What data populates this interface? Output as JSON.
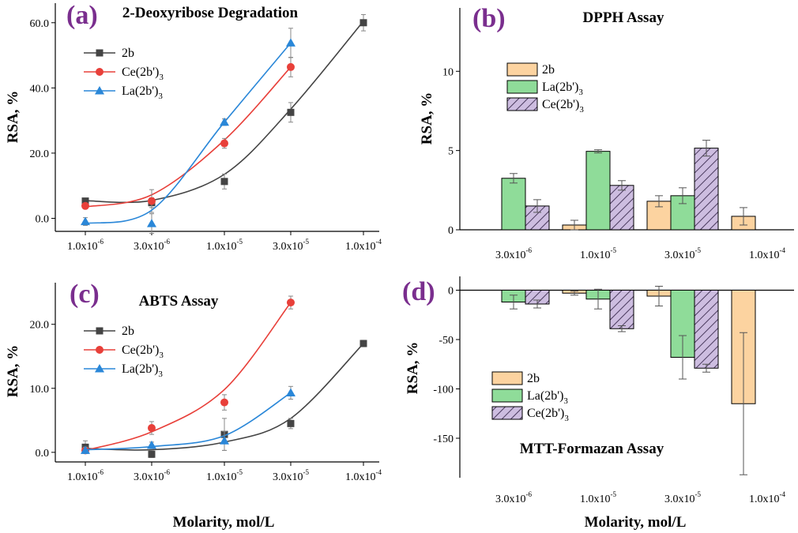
{
  "colors": {
    "s2b": "#444444",
    "ce": "#e8403a",
    "la": "#2a87d8",
    "bar_2b": "#fcd3a0",
    "bar_la": "#8fdc99",
    "bar_ce": "#cdbde0",
    "panel_label": "#7a2e8e"
  },
  "shared": {
    "xlabel": "Molarity, mol/L"
  },
  "chart_data": [
    {
      "id": "a",
      "panel_label": "(a)",
      "type": "line",
      "title": "2-Deoxyribose Degradation",
      "ylabel": "RSA, %",
      "xlabel": "",
      "x_scale": "log",
      "x_ticks": [
        "1.0x10",
        "3.0x10",
        "1.0x10",
        "3.0x10",
        "1.0x10"
      ],
      "x_tick_exps": [
        "-6",
        "-6",
        "-5",
        "-5",
        "-4"
      ],
      "x_tick_values": [
        1e-06,
        3e-06,
        1e-05,
        3e-05,
        0.0001
      ],
      "ylim": [
        -4,
        66
      ],
      "yticks": [
        0,
        20,
        40,
        60
      ],
      "ytick_labels": [
        "0.0",
        "20.0",
        "40.0",
        "60.0"
      ],
      "legend": [
        "2b",
        "Ce(2b')",
        "La(2b')"
      ],
      "legend_sub": "3",
      "series": [
        {
          "name": "2b",
          "color_key": "s2b",
          "marker": "square",
          "x": [
            1e-06,
            3e-06,
            1e-05,
            3e-05,
            0.0001
          ],
          "values": [
            5.3,
            4.8,
            11.3,
            32.5,
            60.0
          ],
          "errors": [
            0.8,
            1.5,
            2.3,
            3.0,
            2.5
          ],
          "fit": [
            5.4,
            5.5,
            13.5,
            33.5,
            60.5
          ]
        },
        {
          "name": "Ce(2b')3",
          "color_key": "ce",
          "marker": "circle",
          "x": [
            1e-06,
            3e-06,
            1e-05,
            3e-05
          ],
          "values": [
            3.8,
            5.3,
            23.0,
            46.4
          ],
          "errors": [
            0.7,
            3.5,
            1.5,
            3.0
          ],
          "fit": [
            3.5,
            7.2,
            24.0,
            46.4
          ]
        },
        {
          "name": "La(2b')3",
          "color_key": "la",
          "marker": "triangle",
          "x": [
            1e-06,
            3e-06,
            1e-05,
            3e-05
          ],
          "values": [
            -1.0,
            -1.6,
            29.5,
            53.8
          ],
          "errors": [
            1.2,
            3.0,
            1.0,
            4.5
          ],
          "fit": [
            -1.6,
            2.5,
            29.5,
            53.8
          ]
        }
      ]
    },
    {
      "id": "b",
      "panel_label": "(b)",
      "type": "bar",
      "title": "DPPH Assay",
      "ylabel": "RSA, %",
      "categories": [
        "3.0x10",
        "1.0x10",
        "3.0x10",
        "1.0x10"
      ],
      "category_exps": [
        "-6",
        "-5",
        "-5",
        "-4"
      ],
      "ylim": [
        0,
        14
      ],
      "yticks": [
        0,
        5,
        10
      ],
      "ytick_labels": [
        "0",
        "5",
        "10"
      ],
      "legend": [
        "2b",
        "La(2b')",
        "Ce(2b')"
      ],
      "legend_sub": [
        "",
        "3",
        "3"
      ],
      "series": [
        {
          "name": "2b",
          "color_key": "bar_2b",
          "hatch": false,
          "values": [
            null,
            0.3,
            1.8,
            0.85
          ],
          "errors": [
            0,
            0.3,
            0.35,
            0.55
          ]
        },
        {
          "name": "La(2b')3",
          "color_key": "bar_la",
          "hatch": false,
          "values": [
            3.25,
            4.95,
            2.15,
            null
          ],
          "errors": [
            0.3,
            0.1,
            0.5,
            0
          ]
        },
        {
          "name": "Ce(2b')3",
          "color_key": "bar_ce",
          "hatch": true,
          "values": [
            1.5,
            2.8,
            5.15,
            null
          ],
          "errors": [
            0.4,
            0.3,
            0.5,
            0
          ]
        }
      ]
    },
    {
      "id": "c",
      "panel_label": "(c)",
      "type": "line",
      "title": "ABTS Assay",
      "ylabel": "RSA, %",
      "x_scale": "log",
      "x_ticks": [
        "1.0x10",
        "3.0x10",
        "1.0x10",
        "3.0x10",
        "1.0x10"
      ],
      "x_tick_exps": [
        "-6",
        "-6",
        "-5",
        "-5",
        "-4"
      ],
      "x_tick_values": [
        1e-06,
        3e-06,
        1e-05,
        3e-05,
        0.0001
      ],
      "ylim": [
        -1.5,
        26.5
      ],
      "yticks": [
        0,
        10,
        20
      ],
      "ytick_labels": [
        "0.0",
        "10.0",
        "20.0"
      ],
      "legend": [
        "2b",
        "Ce(2b')",
        "La(2b')"
      ],
      "legend_sub": "3",
      "series": [
        {
          "name": "2b",
          "color_key": "s2b",
          "marker": "square",
          "x": [
            1e-06,
            3e-06,
            1e-05,
            3e-05,
            0.0001
          ],
          "values": [
            0.8,
            -0.3,
            2.8,
            4.5,
            17.0
          ],
          "errors": [
            1.0,
            0.5,
            2.5,
            0.8,
            0.5
          ],
          "fit": [
            0.6,
            0.4,
            1.6,
            5.3,
            17.0
          ]
        },
        {
          "name": "Ce(2b')3",
          "color_key": "ce",
          "marker": "circle",
          "x": [
            1e-06,
            3e-06,
            1e-05,
            3e-05
          ],
          "values": [
            0.3,
            3.8,
            7.8,
            23.4
          ],
          "errors": [
            0.5,
            1.0,
            1.2,
            1.0
          ],
          "fit": [
            0.3,
            3.2,
            9.8,
            23.4
          ]
        },
        {
          "name": "La(2b')3",
          "color_key": "la",
          "marker": "triangle",
          "x": [
            1e-06,
            3e-06,
            1e-05,
            3e-05
          ],
          "values": [
            0.3,
            1.1,
            1.8,
            9.3
          ],
          "errors": [
            0.5,
            0.5,
            1.5,
            1.0
          ],
          "fit": [
            0.4,
            0.9,
            2.6,
            9.3
          ]
        }
      ]
    },
    {
      "id": "d",
      "panel_label": "(d)",
      "type": "bar",
      "title": "MTT-Formazan Assay",
      "ylabel": "RSA, %",
      "categories": [
        "3.0x10",
        "1.0x10",
        "3.0x10",
        "1.0x10"
      ],
      "category_exps": [
        "-6",
        "-5",
        "-5",
        "-4"
      ],
      "ylim": [
        -190,
        14
      ],
      "yticks": [
        0,
        -50,
        -100,
        -150
      ],
      "ytick_labels": [
        "0",
        "-50",
        "-100",
        "-150"
      ],
      "legend": [
        "2b",
        "La(2b')",
        "Ce(2b')"
      ],
      "legend_sub": [
        "",
        "3",
        "3"
      ],
      "series": [
        {
          "name": "2b",
          "color_key": "bar_2b",
          "hatch": false,
          "values": [
            null,
            -3,
            -6,
            -115
          ],
          "errors": [
            0,
            2,
            10,
            72
          ]
        },
        {
          "name": "La(2b')3",
          "color_key": "bar_la",
          "hatch": false,
          "values": [
            -12,
            -9,
            -68,
            null
          ],
          "errors": [
            7,
            10,
            22,
            0
          ]
        },
        {
          "name": "Ce(2b')3",
          "color_key": "bar_ce",
          "hatch": true,
          "values": [
            -14,
            -39,
            -79,
            null
          ],
          "errors": [
            4,
            3,
            4,
            0
          ]
        }
      ]
    }
  ]
}
